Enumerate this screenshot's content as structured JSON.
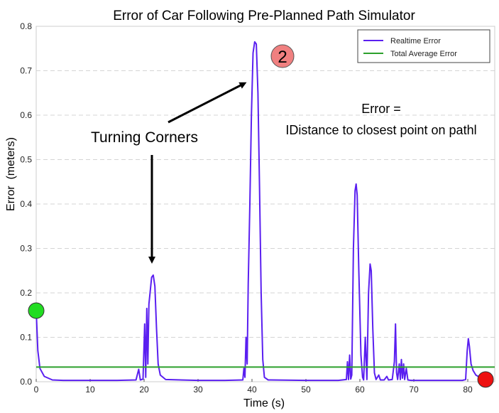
{
  "chart_data": {
    "type": "line",
    "title": "Error of Car Following Pre-Planned Path Simulator",
    "xlabel": "Time (s)",
    "ylabel": "Error  (meters)",
    "xlim": [
      0,
      85
    ],
    "ylim": [
      0,
      0.8
    ],
    "x_ticks": [
      0,
      10,
      20,
      30,
      40,
      50,
      60,
      70,
      80
    ],
    "x_tick_labels": [
      "0",
      "10",
      "20",
      "30",
      "40",
      "50",
      "60",
      "70",
      "80"
    ],
    "y_ticks": [
      0.0,
      0.1,
      0.2,
      0.3,
      0.4,
      0.5,
      0.6,
      0.7,
      0.8
    ],
    "y_tick_labels": [
      "0.0",
      "0.1",
      "0.2",
      "0.3",
      "0.4",
      "0.5",
      "0.6",
      "0.7",
      "0.8"
    ],
    "grid": "horizontal dashed",
    "legend_position": "top-right",
    "series": [
      {
        "name": "Realtime Error",
        "color": "#5a1ff0",
        "points": [
          [
            0,
            0.16
          ],
          [
            0.3,
            0.07
          ],
          [
            0.7,
            0.03
          ],
          [
            1.5,
            0.012
          ],
          [
            3,
            0.004
          ],
          [
            5,
            0.003
          ],
          [
            10,
            0.003
          ],
          [
            15,
            0.003
          ],
          [
            18.5,
            0.004
          ],
          [
            19,
            0.028
          ],
          [
            19.3,
            0.004
          ],
          [
            19.8,
            0.006
          ],
          [
            20.1,
            0.13
          ],
          [
            20.3,
            0.01
          ],
          [
            20.5,
            0.165
          ],
          [
            20.7,
            0.04
          ],
          [
            20.9,
            0.175
          ],
          [
            21.1,
            0.2
          ],
          [
            21.4,
            0.235
          ],
          [
            21.7,
            0.24
          ],
          [
            22,
            0.215
          ],
          [
            22.3,
            0.12
          ],
          [
            22.6,
            0.04
          ],
          [
            23,
            0.015
          ],
          [
            24,
            0.005
          ],
          [
            30,
            0.003
          ],
          [
            35,
            0.003
          ],
          [
            38.3,
            0.004
          ],
          [
            38.5,
            0.03
          ],
          [
            38.7,
            0.01
          ],
          [
            38.9,
            0.1
          ],
          [
            39.1,
            0.04
          ],
          [
            39.3,
            0.22
          ],
          [
            39.6,
            0.4
          ],
          [
            39.9,
            0.6
          ],
          [
            40.2,
            0.74
          ],
          [
            40.5,
            0.765
          ],
          [
            40.8,
            0.76
          ],
          [
            41.1,
            0.65
          ],
          [
            41.4,
            0.44
          ],
          [
            41.7,
            0.2
          ],
          [
            42,
            0.05
          ],
          [
            42.3,
            0.01
          ],
          [
            43,
            0.004
          ],
          [
            50,
            0.003
          ],
          [
            56,
            0.003
          ],
          [
            57.5,
            0.005
          ],
          [
            57.7,
            0.045
          ],
          [
            57.9,
            0.005
          ],
          [
            58.1,
            0.06
          ],
          [
            58.3,
            0.006
          ],
          [
            58.5,
            0.015
          ],
          [
            58.8,
            0.3
          ],
          [
            59.1,
            0.43
          ],
          [
            59.3,
            0.445
          ],
          [
            59.5,
            0.42
          ],
          [
            59.8,
            0.25
          ],
          [
            60.2,
            0.06
          ],
          [
            60.5,
            0.01
          ],
          [
            60.7,
            0.004
          ],
          [
            61,
            0.1
          ],
          [
            61.3,
            0.005
          ],
          [
            61.6,
            0.2
          ],
          [
            61.9,
            0.265
          ],
          [
            62.1,
            0.25
          ],
          [
            62.4,
            0.12
          ],
          [
            62.7,
            0.02
          ],
          [
            63,
            0.005
          ],
          [
            63.5,
            0.015
          ],
          [
            63.8,
            0.004
          ],
          [
            64.5,
            0.004
          ],
          [
            65,
            0.012
          ],
          [
            65.3,
            0.004
          ],
          [
            66,
            0.005
          ],
          [
            66.4,
            0.045
          ],
          [
            66.6,
            0.13
          ],
          [
            66.8,
            0.02
          ],
          [
            67,
            0.005
          ],
          [
            67.3,
            0.04
          ],
          [
            67.5,
            0.005
          ],
          [
            67.7,
            0.05
          ],
          [
            67.9,
            0.008
          ],
          [
            68.1,
            0.04
          ],
          [
            68.3,
            0.005
          ],
          [
            68.6,
            0.03
          ],
          [
            68.9,
            0.004
          ],
          [
            69.5,
            0.003
          ],
          [
            79,
            0.003
          ],
          [
            79.6,
            0.005
          ],
          [
            79.9,
            0.07
          ],
          [
            80.1,
            0.097
          ],
          [
            80.3,
            0.08
          ],
          [
            80.6,
            0.04
          ],
          [
            81,
            0.025
          ],
          [
            81.5,
            0.015
          ],
          [
            82.5,
            0.008
          ],
          [
            83.3,
            0.005
          ]
        ]
      },
      {
        "name": "Total Average Error",
        "color": "#2ca02c",
        "points": [
          [
            0,
            0.033
          ],
          [
            85,
            0.033
          ]
        ]
      }
    ],
    "markers": [
      {
        "x": 0,
        "y": 0.16,
        "color": "#22dd22"
      },
      {
        "x": 83.3,
        "y": 0.005,
        "color": "#ee1111"
      }
    ],
    "annotations": {
      "turning_corners": "Turning Corners",
      "badge": "2",
      "error_def_line1": "Error =",
      "error_def_line2": "IDistance to closest point on pathl"
    }
  }
}
